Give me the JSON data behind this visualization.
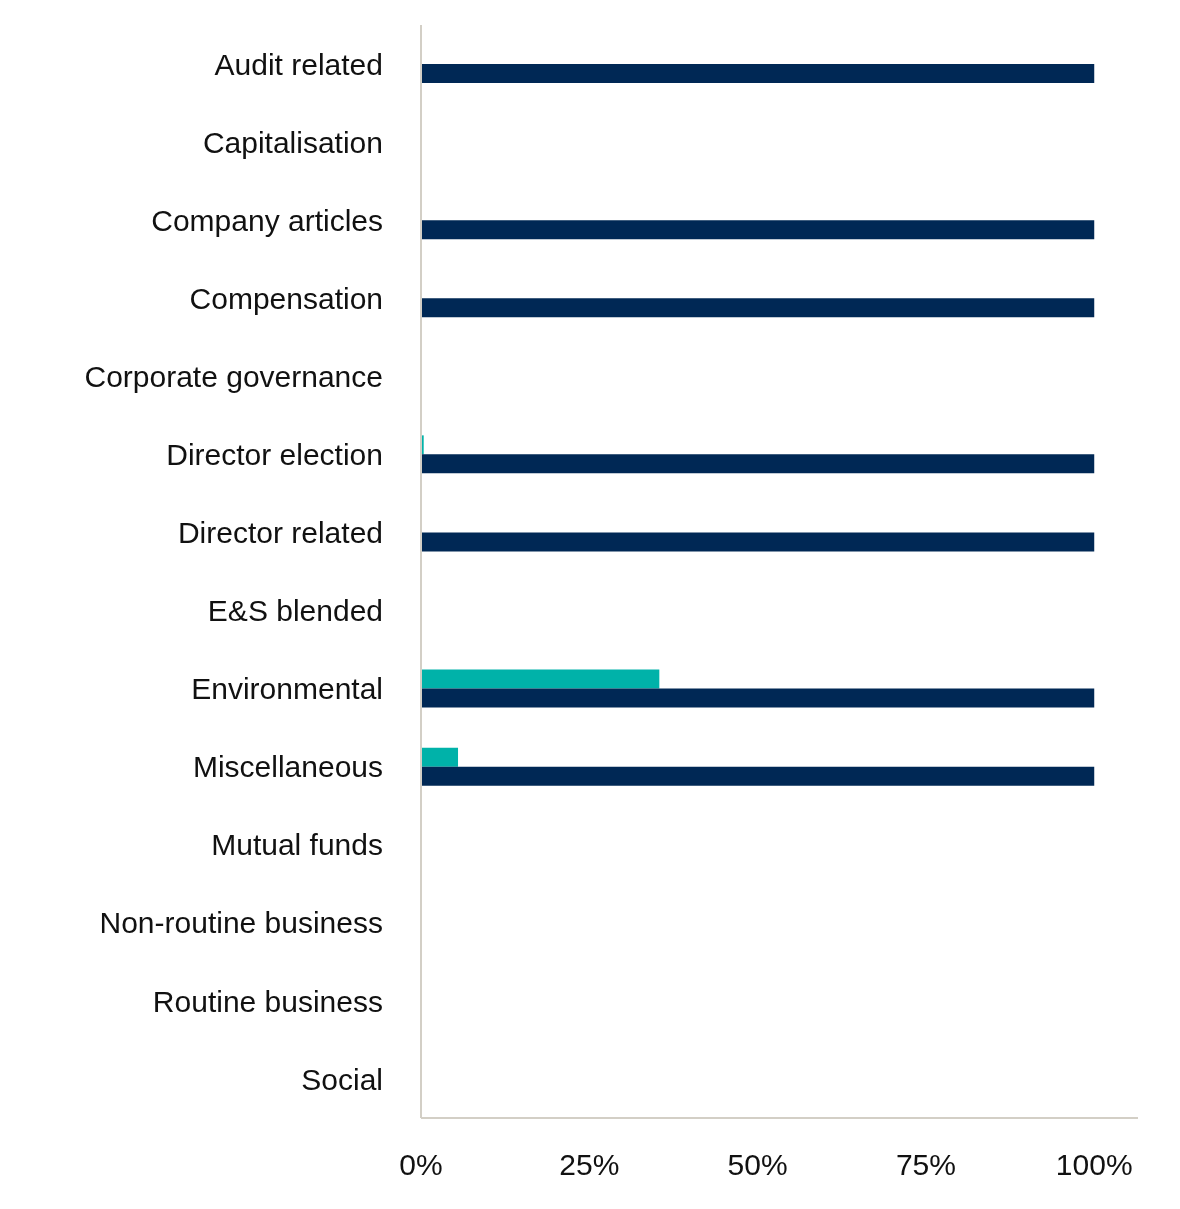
{
  "chart_data": {
    "type": "bar",
    "orientation": "horizontal",
    "categories": [
      "Audit related",
      "Capitalisation",
      "Company articles",
      "Compensation",
      "Corporate governance",
      "Director election",
      "Director related",
      "E&S blended",
      "Environmental",
      "Miscellaneous",
      "Mutual funds",
      "Non-routine business",
      "Routine business",
      "Social"
    ],
    "series": [
      {
        "color": "#00b2a9",
        "values": [
          null,
          null,
          null,
          null,
          null,
          0.4,
          null,
          null,
          35.4,
          5.5,
          null,
          null,
          null,
          null
        ]
      },
      {
        "color": "#002855",
        "values": [
          100,
          null,
          100,
          100,
          null,
          100,
          100,
          null,
          100,
          100,
          null,
          null,
          null,
          null
        ]
      }
    ],
    "xlim": [
      0,
      106.5
    ],
    "xticks": [
      {
        "value": 0,
        "label": "0%"
      },
      {
        "value": 25,
        "label": "25%"
      },
      {
        "value": 50,
        "label": "50%"
      },
      {
        "value": 75,
        "label": "75%"
      },
      {
        "value": 100,
        "label": "100%"
      }
    ],
    "grid": false,
    "legend": false
  }
}
